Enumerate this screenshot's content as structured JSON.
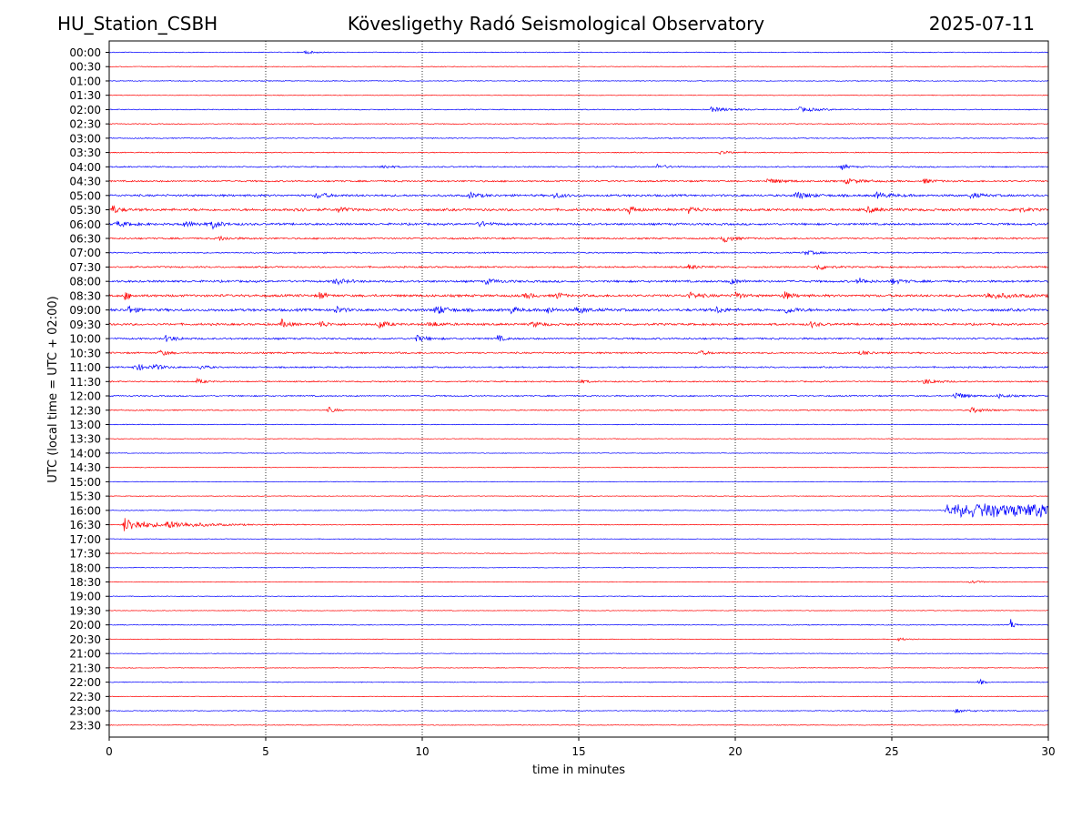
{
  "header": {
    "station": "HU_Station_CSBH",
    "observatory": "Kövesligethy Radó Seismological Observatory",
    "date": "2025-07-11"
  },
  "chart_data": {
    "type": "line",
    "title": "Kövesligethy Radó Seismological Observatory",
    "xlabel": "time in minutes",
    "ylabel": "UTC (local time = UTC + 02:00)",
    "xlim": [
      0,
      30
    ],
    "xticks": [
      0,
      5,
      10,
      15,
      20,
      25,
      30
    ],
    "vertical_gridlines_at": [
      5,
      10,
      15,
      20,
      25
    ],
    "grid_style": "dotted",
    "row_labels": [
      "00:00",
      "00:30",
      "01:00",
      "01:30",
      "02:00",
      "02:30",
      "03:00",
      "03:30",
      "04:00",
      "04:30",
      "05:00",
      "05:30",
      "06:00",
      "06:30",
      "07:00",
      "07:30",
      "08:00",
      "08:30",
      "09:00",
      "09:30",
      "10:00",
      "10:30",
      "11:00",
      "11:30",
      "12:00",
      "12:30",
      "13:00",
      "13:30",
      "14:00",
      "14:30",
      "15:00",
      "15:30",
      "16:00",
      "16:30",
      "17:00",
      "17:30",
      "18:00",
      "18:30",
      "19:00",
      "19:30",
      "20:00",
      "20:30",
      "21:00",
      "21:30",
      "22:00",
      "22:30",
      "23:00",
      "23:30"
    ],
    "colors": {
      "even_rows": "#0000ff",
      "odd_rows": "#ff0000"
    },
    "rows": [
      {
        "noise": 0.5,
        "events": [
          [
            6.2,
            0.3,
            2
          ]
        ]
      },
      {
        "noise": 0.4,
        "events": []
      },
      {
        "noise": 0.5,
        "events": []
      },
      {
        "noise": 0.4,
        "events": []
      },
      {
        "noise": 0.6,
        "events": [
          [
            19.2,
            0.6,
            2.5
          ],
          [
            22.0,
            0.6,
            2.5
          ]
        ]
      },
      {
        "noise": 0.5,
        "events": []
      },
      {
        "noise": 0.6,
        "events": []
      },
      {
        "noise": 0.6,
        "events": [
          [
            19.5,
            0.3,
            2
          ]
        ]
      },
      {
        "noise": 0.8,
        "events": [
          [
            8.7,
            0.2,
            3
          ],
          [
            17.5,
            0.3,
            2.5
          ],
          [
            23.4,
            0.2,
            3
          ]
        ]
      },
      {
        "noise": 1.0,
        "events": [
          [
            21.0,
            0.5,
            2.5
          ],
          [
            23.5,
            0.5,
            2.5
          ],
          [
            26.0,
            0.3,
            2.5
          ]
        ]
      },
      {
        "noise": 1.3,
        "events": [
          [
            6.6,
            0.3,
            3.5
          ],
          [
            11.5,
            0.3,
            3
          ],
          [
            14.2,
            0.3,
            3
          ],
          [
            21.9,
            0.4,
            4
          ],
          [
            24.5,
            0.4,
            3
          ],
          [
            27.5,
            0.3,
            3
          ]
        ]
      },
      {
        "noise": 1.5,
        "events": [
          [
            0.1,
            0.2,
            4.5
          ],
          [
            5.9,
            0.2,
            3.5
          ],
          [
            7.3,
            0.2,
            4
          ],
          [
            16.6,
            0.2,
            4.5
          ],
          [
            18.5,
            0.3,
            3.5
          ],
          [
            24.2,
            0.3,
            3
          ],
          [
            28.9,
            0.3,
            3
          ]
        ]
      },
      {
        "noise": 1.3,
        "events": [
          [
            0.2,
            0.4,
            3
          ],
          [
            2.3,
            0.6,
            2.5
          ],
          [
            3.3,
            0.2,
            5
          ],
          [
            11.8,
            0.3,
            3
          ]
        ]
      },
      {
        "noise": 1.0,
        "events": [
          [
            3.5,
            0.3,
            2.5
          ],
          [
            19.6,
            0.3,
            4.5
          ]
        ]
      },
      {
        "noise": 0.8,
        "events": [
          [
            22.2,
            0.4,
            2.5
          ]
        ]
      },
      {
        "noise": 1.0,
        "events": [
          [
            18.5,
            0.3,
            2.5
          ],
          [
            22.6,
            0.3,
            3.5
          ]
        ]
      },
      {
        "noise": 1.3,
        "events": [
          [
            7.2,
            0.3,
            3.5
          ],
          [
            12.0,
            0.4,
            2.5
          ],
          [
            19.8,
            0.3,
            3
          ],
          [
            23.9,
            0.2,
            4.5
          ],
          [
            25.0,
            0.3,
            3
          ]
        ]
      },
      {
        "noise": 1.5,
        "events": [
          [
            0.5,
            0.15,
            4.5
          ],
          [
            6.7,
            0.15,
            5
          ],
          [
            13.3,
            0.15,
            4.5
          ],
          [
            14.3,
            0.15,
            4
          ],
          [
            18.5,
            0.3,
            3.5
          ],
          [
            20.0,
            0.15,
            5
          ],
          [
            21.5,
            0.2,
            6
          ],
          [
            28.0,
            0.8,
            3
          ]
        ]
      },
      {
        "noise": 1.6,
        "events": [
          [
            0.6,
            0.2,
            4.5
          ],
          [
            7.2,
            0.2,
            4.5
          ],
          [
            10.4,
            0.3,
            6
          ],
          [
            12.8,
            0.2,
            4
          ],
          [
            14.0,
            0.15,
            5
          ],
          [
            14.9,
            0.3,
            4
          ],
          [
            19.4,
            0.2,
            3.5
          ],
          [
            21.6,
            0.3,
            3.5
          ]
        ]
      },
      {
        "noise": 1.3,
        "events": [
          [
            5.5,
            0.2,
            5
          ],
          [
            6.7,
            0.2,
            5
          ],
          [
            8.6,
            0.2,
            5.5
          ],
          [
            10.2,
            0.3,
            3
          ],
          [
            13.5,
            0.3,
            3
          ],
          [
            22.4,
            0.2,
            3.5
          ]
        ]
      },
      {
        "noise": 1.1,
        "events": [
          [
            1.8,
            0.3,
            3.5
          ],
          [
            9.8,
            0.3,
            3.5
          ],
          [
            12.4,
            0.15,
            4.5
          ]
        ]
      },
      {
        "noise": 1.0,
        "events": [
          [
            1.6,
            0.2,
            4
          ],
          [
            18.8,
            0.3,
            2.5
          ],
          [
            24.0,
            0.3,
            2.5
          ]
        ]
      },
      {
        "noise": 0.9,
        "events": [
          [
            0.8,
            0.3,
            4.5
          ],
          [
            1.4,
            0.3,
            3
          ],
          [
            2.9,
            0.2,
            3
          ]
        ]
      },
      {
        "noise": 0.8,
        "events": [
          [
            2.8,
            0.2,
            3
          ],
          [
            15.0,
            0.2,
            2.5
          ],
          [
            26.0,
            0.4,
            3
          ]
        ]
      },
      {
        "noise": 0.8,
        "events": [
          [
            27.0,
            0.3,
            4.5
          ],
          [
            28.4,
            0.3,
            2.5
          ]
        ]
      },
      {
        "noise": 0.7,
        "events": [
          [
            7.0,
            0.2,
            3.5
          ],
          [
            27.5,
            0.4,
            3
          ]
        ]
      },
      {
        "noise": 0.5,
        "events": []
      },
      {
        "noise": 0.4,
        "events": []
      },
      {
        "noise": 0.4,
        "events": []
      },
      {
        "noise": 0.4,
        "events": []
      },
      {
        "noise": 0.4,
        "events": []
      },
      {
        "noise": 0.4,
        "events": []
      },
      {
        "noise": 0.5,
        "events": [
          [
            26.7,
            3.3,
            8,
            "box"
          ]
        ]
      },
      {
        "noise": 0.5,
        "events": [
          [
            0.45,
            0.7,
            8
          ],
          [
            1.8,
            1.3,
            3
          ]
        ]
      },
      {
        "noise": 0.4,
        "events": []
      },
      {
        "noise": 0.4,
        "events": []
      },
      {
        "noise": 0.4,
        "events": []
      },
      {
        "noise": 0.4,
        "events": [
          [
            27.5,
            0.3,
            2
          ]
        ]
      },
      {
        "noise": 0.4,
        "events": []
      },
      {
        "noise": 0.4,
        "events": []
      },
      {
        "noise": 0.5,
        "events": [
          [
            28.8,
            0.1,
            6
          ]
        ]
      },
      {
        "noise": 0.4,
        "events": [
          [
            25.2,
            0.2,
            2
          ]
        ]
      },
      {
        "noise": 0.4,
        "events": []
      },
      {
        "noise": 0.4,
        "events": []
      },
      {
        "noise": 0.5,
        "events": [
          [
            27.8,
            0.1,
            4
          ]
        ]
      },
      {
        "noise": 0.4,
        "events": []
      },
      {
        "noise": 0.5,
        "events": [
          [
            27.0,
            0.5,
            2
          ]
        ]
      },
      {
        "noise": 0.4,
        "events": []
      }
    ]
  }
}
